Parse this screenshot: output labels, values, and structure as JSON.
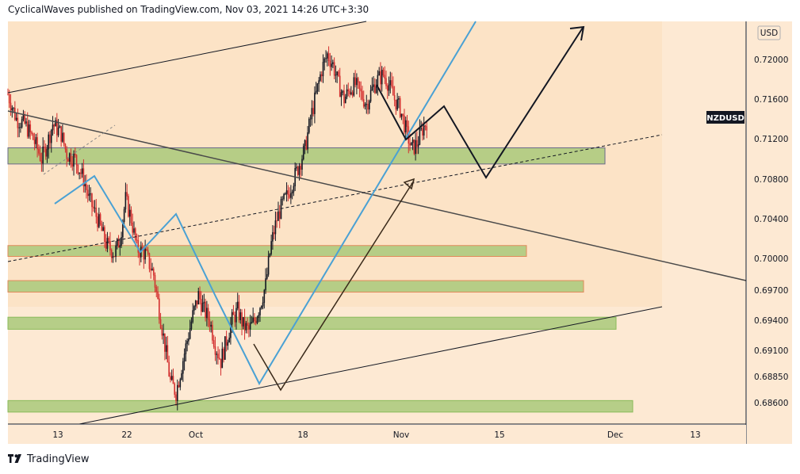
{
  "header": {
    "text": "CyclicalWaves published on TradingView.com, Nov 03, 2021 14:26 UTC+3:30"
  },
  "footer": {
    "brand": "TradingView",
    "logo_icon": "tradingview-logo-icon"
  },
  "colors": {
    "background_zone": "#fce3c6",
    "background_light": "#fde9d3",
    "support_zone": "#a9c97a",
    "candle_up": "#131722",
    "candle_down": "#d32f2f",
    "blue_wave": "#4aa1d4",
    "projection": "#131722",
    "symbol_badge": "#131722"
  },
  "chart_data": {
    "type": "candlestick",
    "symbol": "NZDUSD",
    "currency": "USD",
    "ylim": [
      0.6845,
      0.724
    ],
    "y_ticks": [
      0.72,
      0.716,
      0.712,
      0.708,
      0.704,
      0.7,
      0.697,
      0.694,
      0.691,
      0.6885,
      0.686
    ],
    "y_tick_labels": [
      "0.72000",
      "0.71600",
      "0.71200",
      "0.70800",
      "0.70400",
      "0.70000",
      "0.69700",
      "0.69400",
      "0.69100",
      "0.68850",
      "0.68600"
    ],
    "x_tick_labels": [
      "13",
      "22",
      "Oct",
      "18",
      "Nov",
      "15",
      "Dec",
      "13"
    ],
    "last_price_label": "NZDUSD",
    "price_path": [
      [
        0,
        0.7165
      ],
      [
        3,
        0.714
      ],
      [
        6,
        0.7135
      ],
      [
        9,
        0.712
      ],
      [
        12,
        0.71
      ],
      [
        14,
        0.7115
      ],
      [
        16,
        0.7135
      ],
      [
        19,
        0.7125
      ],
      [
        21,
        0.7105
      ],
      [
        24,
        0.71
      ],
      [
        27,
        0.708
      ],
      [
        29,
        0.706
      ],
      [
        32,
        0.704
      ],
      [
        35,
        0.7015
      ],
      [
        38,
        0.7005
      ],
      [
        40,
        0.702
      ],
      [
        42,
        0.706
      ],
      [
        44,
        0.704
      ],
      [
        46,
        0.701
      ],
      [
        49,
        0.7005
      ],
      [
        52,
        0.6985
      ],
      [
        54,
        0.695
      ],
      [
        56,
        0.6915
      ],
      [
        58,
        0.688
      ],
      [
        60,
        0.687
      ],
      [
        62,
        0.6895
      ],
      [
        64,
        0.692
      ],
      [
        66,
        0.6945
      ],
      [
        68,
        0.6965
      ],
      [
        70,
        0.695
      ],
      [
        72,
        0.694
      ],
      [
        74,
        0.6915
      ],
      [
        76,
        0.69
      ],
      [
        78,
        0.692
      ],
      [
        80,
        0.694
      ],
      [
        82,
        0.695
      ],
      [
        84,
        0.6935
      ],
      [
        86,
        0.693
      ],
      [
        88,
        0.694
      ],
      [
        90,
        0.6955
      ],
      [
        92,
        0.6975
      ],
      [
        94,
        0.7015
      ],
      [
        96,
        0.704
      ],
      [
        98,
        0.7055
      ],
      [
        100,
        0.7065
      ],
      [
        102,
        0.708
      ],
      [
        104,
        0.7095
      ],
      [
        106,
        0.711
      ],
      [
        108,
        0.714
      ],
      [
        110,
        0.7165
      ],
      [
        112,
        0.719
      ],
      [
        114,
        0.7205
      ],
      [
        116,
        0.7195
      ],
      [
        118,
        0.7175
      ],
      [
        120,
        0.716
      ],
      [
        122,
        0.717
      ],
      [
        124,
        0.7175
      ],
      [
        126,
        0.7165
      ],
      [
        128,
        0.7155
      ],
      [
        130,
        0.717
      ],
      [
        132,
        0.718
      ],
      [
        134,
        0.7185
      ],
      [
        136,
        0.7175
      ],
      [
        138,
        0.716
      ],
      [
        140,
        0.715
      ],
      [
        142,
        0.713
      ],
      [
        144,
        0.711
      ],
      [
        146,
        0.7115
      ],
      [
        148,
        0.713
      ],
      [
        150,
        0.714
      ]
    ],
    "zones": [
      {
        "from": 0.7095,
        "to": 0.7111
      },
      {
        "from": 0.7002,
        "to": 0.7013
      },
      {
        "from": 0.6968,
        "to": 0.6979
      },
      {
        "from": 0.6931,
        "to": 0.6943
      },
      {
        "from": 0.6851,
        "to": 0.6862
      }
    ]
  }
}
